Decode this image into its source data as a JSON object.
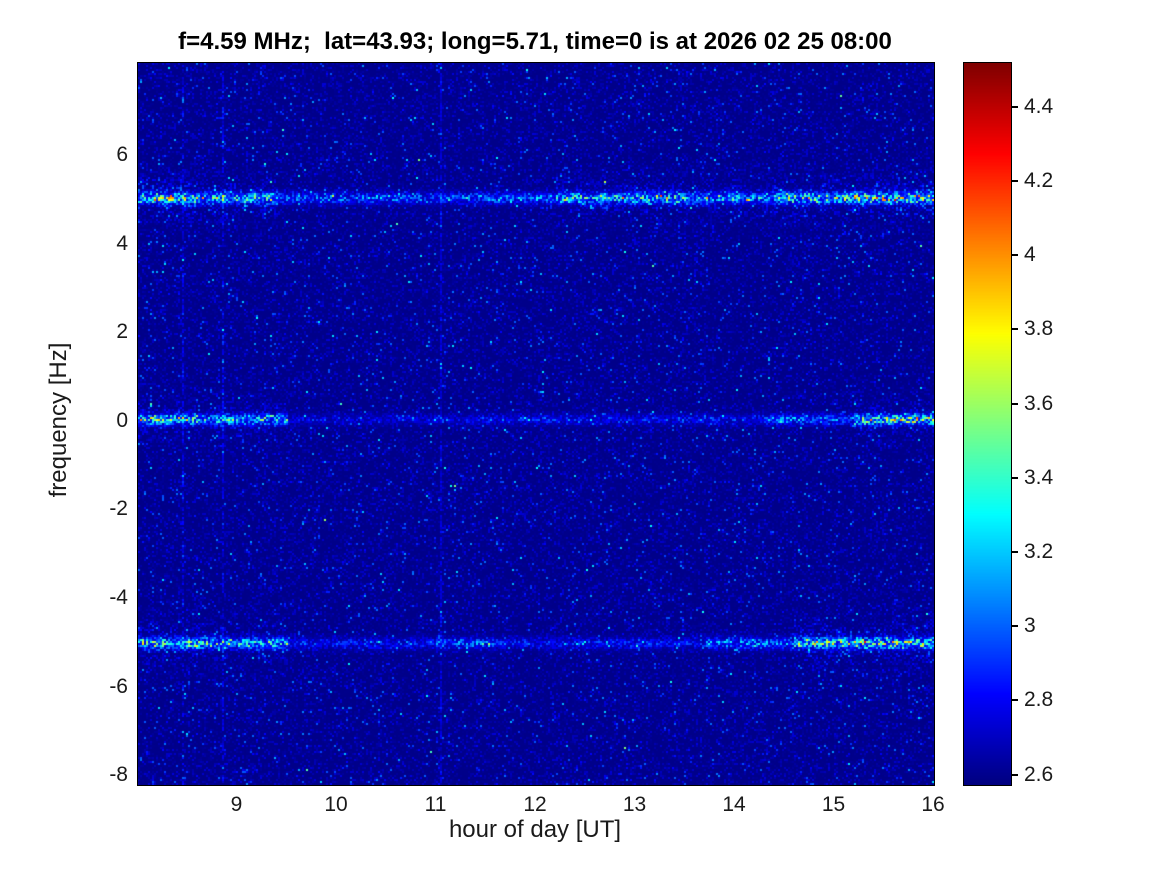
{
  "chart_data": {
    "type": "heatmap",
    "title": "f=4.59 MHz;  lat=43.93; long=5.71, time=0 is at 2026 02 25 08:00",
    "xlabel": "hour of day [UT]",
    "ylabel": "frequency [Hz]",
    "xlim": [
      8,
      16
    ],
    "ylim": [
      -8.2,
      8.1
    ],
    "xticks": [
      9,
      10,
      11,
      12,
      13,
      14,
      15,
      16
    ],
    "yticks": [
      6,
      4,
      2,
      0,
      -2,
      -4,
      -6,
      -8
    ],
    "clim": [
      2.575,
      4.52
    ],
    "colorbar_ticks": [
      4.4,
      4.2,
      4,
      3.8,
      3.6,
      3.4,
      3.2,
      3,
      2.8,
      2.6
    ],
    "colormap": "jet",
    "background_level": 2.6,
    "legend_position": "colorbar-right",
    "grid": false,
    "params": {
      "f_MHz": "4.59",
      "lat": "43.93",
      "long": "5.71",
      "time_zero": "2026 02 25 08:00"
    },
    "bands": [
      {
        "y": 5.05,
        "sigma": 0.12,
        "halo": 0.45,
        "segments": [
          [
            8.0,
            8.6,
            1.0
          ],
          [
            8.6,
            9.4,
            0.8
          ],
          [
            9.4,
            11.5,
            0.45
          ],
          [
            11.5,
            12.2,
            0.55
          ],
          [
            12.2,
            13.6,
            0.75
          ],
          [
            13.6,
            14.4,
            0.6
          ],
          [
            14.4,
            15.2,
            0.85
          ],
          [
            15.2,
            16.0,
            1.05
          ]
        ]
      },
      {
        "y": 0.05,
        "sigma": 0.11,
        "halo": 0.35,
        "segments": [
          [
            8.0,
            8.5,
            0.9
          ],
          [
            8.5,
            9.5,
            0.75
          ],
          [
            9.5,
            11.3,
            0.2
          ],
          [
            11.3,
            12.5,
            0.3
          ],
          [
            12.5,
            14.3,
            0.25
          ],
          [
            14.3,
            15.2,
            0.5
          ],
          [
            15.2,
            16.0,
            0.95
          ]
        ]
      },
      {
        "y": -5.0,
        "sigma": 0.12,
        "halo": 0.4,
        "segments": [
          [
            8.0,
            8.6,
            0.85
          ],
          [
            8.6,
            9.5,
            0.7
          ],
          [
            9.5,
            11.0,
            0.3
          ],
          [
            11.0,
            11.6,
            0.45
          ],
          [
            11.6,
            13.7,
            0.3
          ],
          [
            13.7,
            14.6,
            0.55
          ],
          [
            14.6,
            16.0,
            0.95
          ]
        ]
      }
    ],
    "vertical_lines": [
      {
        "x": 8.45,
        "amp": 0.18,
        "density": 0.55
      },
      {
        "x": 8.85,
        "amp": 0.18,
        "density": 0.55
      },
      {
        "x": 11.05,
        "amp": 0.15,
        "density": 0.8
      }
    ],
    "noise": {
      "seed": 20260225,
      "base_jitter": 0.16,
      "speckle_prob": 0.035,
      "speckle_amp": 0.3,
      "hot_prob": 0.004
    }
  }
}
